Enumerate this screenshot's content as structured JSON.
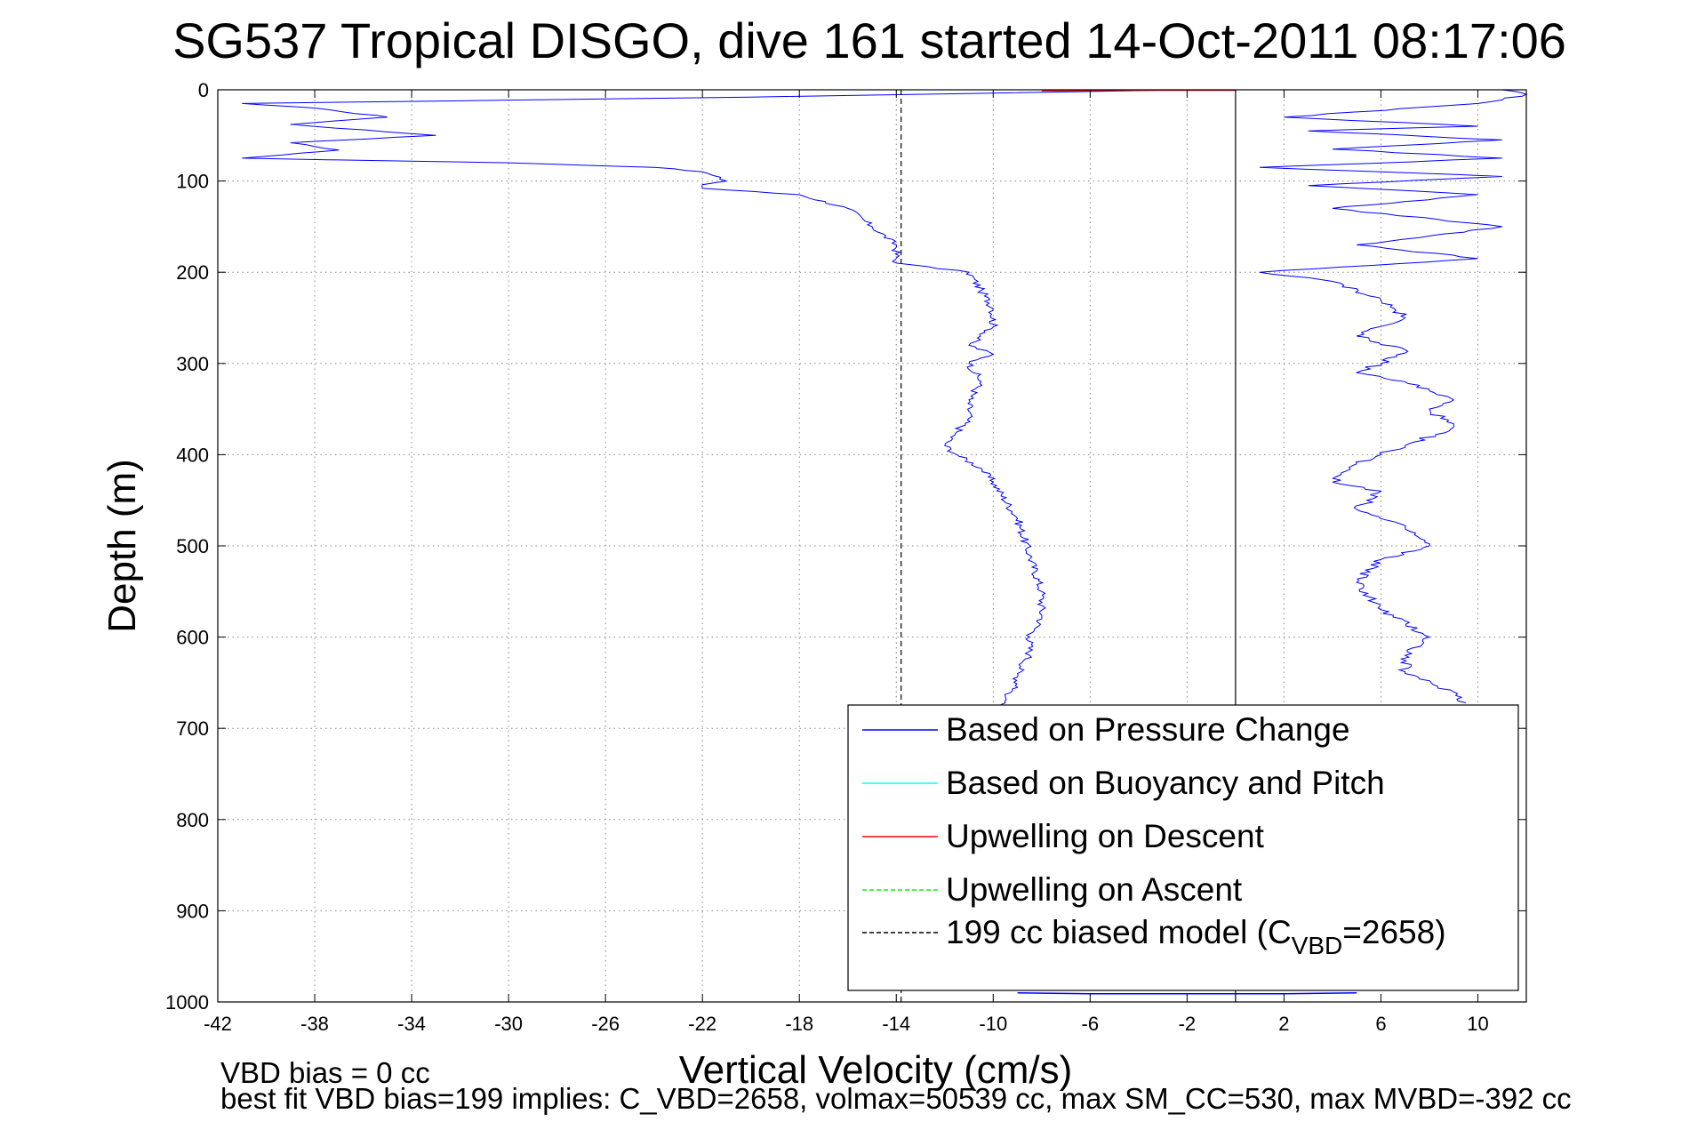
{
  "chart_data": {
    "type": "line",
    "title": "SG537 Tropical DISGO, dive 161 started 14-Oct-2011 08:17:06",
    "xlabel": "Vertical Velocity (cm/s)",
    "ylabel": "Depth (m)",
    "xlim": [
      -42,
      12
    ],
    "ylim": [
      0,
      1000
    ],
    "y_reversed": true,
    "grid": true,
    "x_ticks": [
      -42,
      -38,
      -34,
      -30,
      -26,
      -22,
      -18,
      -14,
      -10,
      -6,
      -2,
      2,
      6,
      10
    ],
    "y_ticks": [
      0,
      100,
      200,
      300,
      400,
      500,
      600,
      700,
      800,
      900,
      1000
    ],
    "legend_position": "bottom-right",
    "legend": [
      {
        "label": "Based on Pressure Change",
        "color": "#0000ff",
        "style": "solid"
      },
      {
        "label": "Based on Buoyancy and Pitch",
        "color": "#00ffff",
        "style": "solid"
      },
      {
        "label": "Upwelling on Descent",
        "color": "#ff0000",
        "style": "solid"
      },
      {
        "label": "Upwelling on Ascent",
        "color": "#00ff00",
        "style": "dashed"
      },
      {
        "label": "199 cc biased model (C",
        "sub": "VBD",
        "suffix": "=2658)",
        "color": "#000000",
        "style": "dashed"
      }
    ],
    "series": [
      {
        "name": "Based on Pressure Change",
        "color": "#0000ff",
        "descent": {
          "velocity": [
            -2,
            -20,
            -41,
            -38,
            -35,
            -39,
            -33,
            -39,
            -37,
            -41,
            -30,
            -24,
            -22,
            -21,
            -22,
            -22,
            -18,
            -16,
            -15,
            -14,
            -14,
            -11,
            -10.5,
            -10,
            -10,
            -11,
            -10,
            -11,
            -10.5,
            -11,
            -11,
            -11.5,
            -12,
            -11.5,
            -10.5,
            -10,
            -9,
            -8.5,
            -8,
            -8,
            -8.5,
            -8.5,
            -9,
            -9,
            -9.5,
            -9.5,
            -9.5
          ],
          "depth": [
            0,
            8,
            15,
            20,
            30,
            38,
            50,
            58,
            66,
            75,
            80,
            85,
            90,
            100,
            104,
            108,
            115,
            130,
            150,
            170,
            190,
            200,
            220,
            240,
            260,
            280,
            290,
            300,
            320,
            340,
            360,
            375,
            390,
            400,
            415,
            430,
            470,
            510,
            550,
            580,
            600,
            620,
            640,
            655,
            665,
            672,
            680
          ]
        },
        "ascent": {
          "velocity": [
            11,
            12,
            10,
            2,
            10,
            3,
            11,
            4,
            11,
            1,
            11,
            3,
            10,
            4,
            11,
            5,
            10,
            1,
            4,
            6,
            7,
            5,
            7,
            6,
            5,
            7,
            8,
            9,
            8,
            9,
            7,
            5,
            4,
            6,
            5,
            7,
            8,
            6,
            5,
            6,
            8,
            7,
            7,
            9,
            9.5
          ],
          "depth": [
            0,
            5,
            15,
            30,
            40,
            45,
            55,
            65,
            75,
            85,
            95,
            105,
            115,
            130,
            150,
            170,
            185,
            200,
            210,
            230,
            250,
            270,
            285,
            300,
            310,
            320,
            330,
            340,
            350,
            370,
            390,
            410,
            430,
            440,
            460,
            480,
            500,
            515,
            540,
            570,
            600,
            620,
            640,
            660,
            672
          ]
        },
        "bottom": {
          "velocity": [
            -9,
            -6,
            -2,
            2,
            5
          ],
          "depth": [
            990,
            991,
            991,
            991,
            990
          ]
        }
      },
      {
        "name": "Upwelling on Descent",
        "color": "#ff0000",
        "velocity": [
          -8,
          -6,
          -4,
          -2,
          0
        ],
        "depth": [
          1,
          1,
          0.5,
          0.5,
          0.5
        ]
      },
      {
        "name": "199 cc biased model (CVBD=2658)",
        "color": "#000000",
        "style": "dashed",
        "velocity": [
          -13.8,
          -13.8
        ],
        "depth": [
          0,
          1000
        ]
      },
      {
        "name": "zero reference",
        "color": "#000000",
        "style": "solid",
        "velocity": [
          0,
          0
        ],
        "depth": [
          0,
          1000
        ]
      }
    ]
  },
  "footer": {
    "line1": "VBD bias = 0 cc",
    "line2": "best fit VBD bias=199 implies: C_VBD=2658, volmax=50539 cc, max SM_CC=530, max MVBD=-392 cc"
  }
}
